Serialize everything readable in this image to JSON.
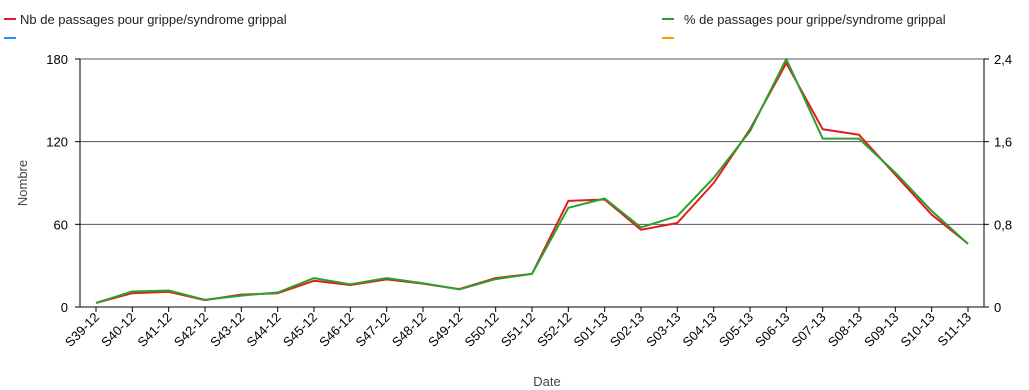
{
  "chart_data": {
    "type": "line",
    "xlabel": "Date",
    "ylabel": "Nombre",
    "categories": [
      "S39-12",
      "S40-12",
      "S41-12",
      "S42-12",
      "S43-12",
      "S44-12",
      "S45-12",
      "S46-12",
      "S47-12",
      "S48-12",
      "S49-12",
      "S50-12",
      "S51-12",
      "S52-12",
      "S01-13",
      "S02-13",
      "S03-13",
      "S04-13",
      "S05-13",
      "S06-13",
      "S07-13",
      "S08-13",
      "S09-13",
      "S10-13",
      "S11-13"
    ],
    "y_left": {
      "min": 0,
      "max": 180,
      "ticks": [
        0,
        60,
        120,
        180
      ],
      "tick_labels": [
        "0",
        "60",
        "120",
        "180"
      ]
    },
    "y_right": {
      "min": 0,
      "max": 2.4,
      "ticks": [
        0,
        0.8,
        1.6,
        2.4
      ],
      "tick_labels": [
        "0",
        "0,8",
        "1,6",
        "2,4"
      ]
    },
    "gridlines": [
      60,
      120,
      180
    ],
    "legend": [
      {
        "label": "Nb de passages pour grippe/syndrome grippal",
        "color": "#e41a1c",
        "position": "top-left"
      },
      {
        "label": "",
        "color": "#1e90ff",
        "position": "top-left"
      },
      {
        "label": "% de passages pour grippe/syndrome grippal",
        "color": "#2ca02c",
        "position": "top-right"
      },
      {
        "label": "",
        "color": "#ff9900",
        "position": "top-right"
      }
    ],
    "series": [
      {
        "name": "Nb de passages pour grippe/syndrome grippal",
        "axis": "left",
        "color": "#e41a1c",
        "values": [
          3,
          10,
          11,
          5,
          9,
          10,
          19,
          16,
          20,
          17,
          13,
          21,
          24,
          77,
          78,
          56,
          61,
          90,
          129,
          177,
          129,
          125,
          96,
          67,
          46
        ]
      },
      {
        "name": "% de passages pour grippe/syndrome grippal",
        "axis": "right",
        "color": "#2ca02c",
        "values": [
          0.04,
          0.15,
          0.16,
          0.07,
          0.11,
          0.14,
          0.28,
          0.22,
          0.28,
          0.23,
          0.17,
          0.27,
          0.32,
          0.96,
          1.05,
          0.77,
          0.88,
          1.25,
          1.7,
          2.4,
          1.63,
          1.63,
          1.3,
          0.93,
          0.61
        ]
      }
    ]
  }
}
